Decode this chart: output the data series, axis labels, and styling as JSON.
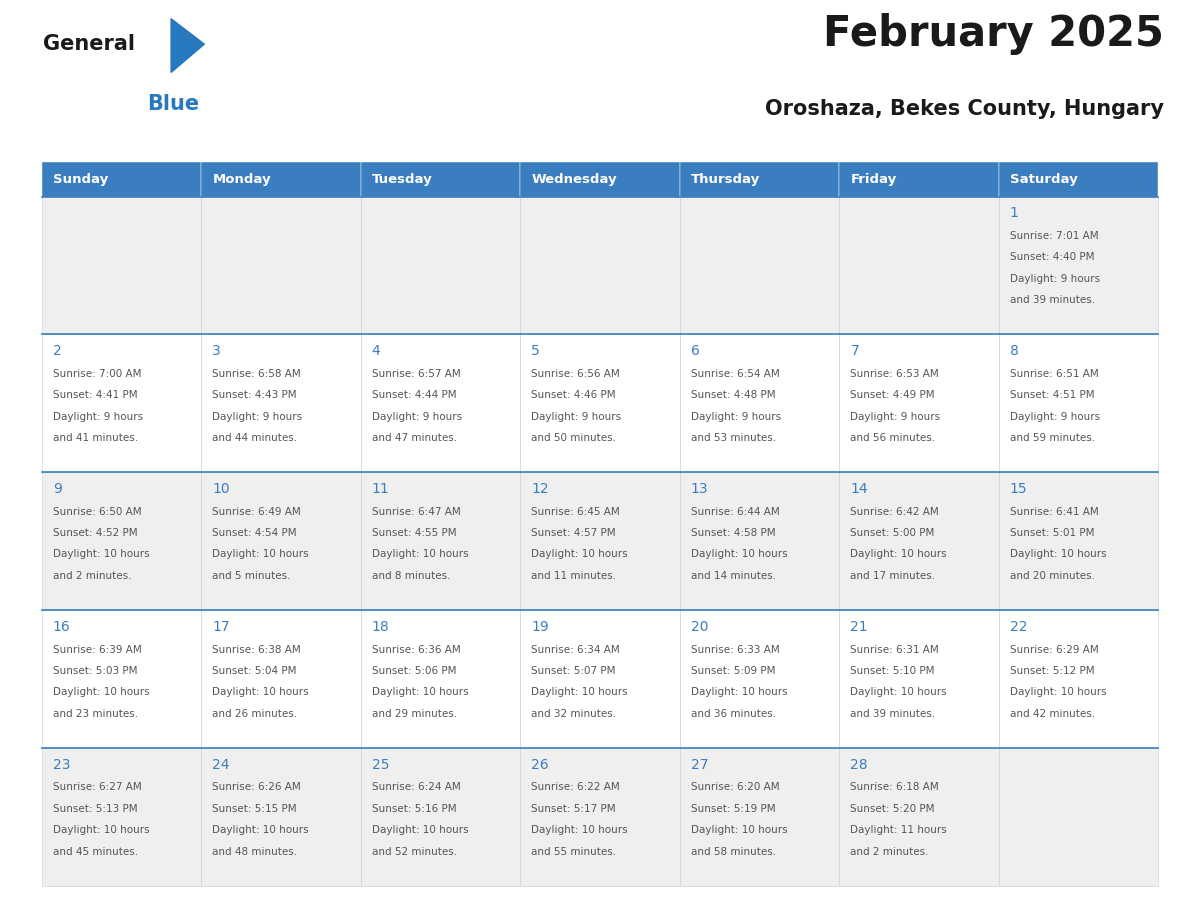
{
  "title": "February 2025",
  "subtitle": "Oroshaza, Bekes County, Hungary",
  "days_of_week": [
    "Sunday",
    "Monday",
    "Tuesday",
    "Wednesday",
    "Thursday",
    "Friday",
    "Saturday"
  ],
  "header_bg": "#3A7EBF",
  "header_text": "#FFFFFF",
  "row0_bg": "#EFEFEF",
  "row1_bg": "#FFFFFF",
  "row2_bg": "#EFEFEF",
  "row3_bg": "#FFFFFF",
  "row4_bg": "#EFEFEF",
  "cell_border_color": "#CCCCCC",
  "row_top_line_color": "#3A7EBF",
  "day_number_color": "#3A7EBF",
  "info_text_color": "#555555",
  "title_color": "#1A1A1A",
  "subtitle_color": "#1A1A1A",
  "logo_general_color": "#1A1A1A",
  "logo_blue_color": "#2878BE",
  "calendar_data": [
    {
      "day": 1,
      "col": 6,
      "row": 0,
      "sunrise": "7:01 AM",
      "sunset": "4:40 PM",
      "daylight_line1": "9 hours",
      "daylight_line2": "and 39 minutes."
    },
    {
      "day": 2,
      "col": 0,
      "row": 1,
      "sunrise": "7:00 AM",
      "sunset": "4:41 PM",
      "daylight_line1": "9 hours",
      "daylight_line2": "and 41 minutes."
    },
    {
      "day": 3,
      "col": 1,
      "row": 1,
      "sunrise": "6:58 AM",
      "sunset": "4:43 PM",
      "daylight_line1": "9 hours",
      "daylight_line2": "and 44 minutes."
    },
    {
      "day": 4,
      "col": 2,
      "row": 1,
      "sunrise": "6:57 AM",
      "sunset": "4:44 PM",
      "daylight_line1": "9 hours",
      "daylight_line2": "and 47 minutes."
    },
    {
      "day": 5,
      "col": 3,
      "row": 1,
      "sunrise": "6:56 AM",
      "sunset": "4:46 PM",
      "daylight_line1": "9 hours",
      "daylight_line2": "and 50 minutes."
    },
    {
      "day": 6,
      "col": 4,
      "row": 1,
      "sunrise": "6:54 AM",
      "sunset": "4:48 PM",
      "daylight_line1": "9 hours",
      "daylight_line2": "and 53 minutes."
    },
    {
      "day": 7,
      "col": 5,
      "row": 1,
      "sunrise": "6:53 AM",
      "sunset": "4:49 PM",
      "daylight_line1": "9 hours",
      "daylight_line2": "and 56 minutes."
    },
    {
      "day": 8,
      "col": 6,
      "row": 1,
      "sunrise": "6:51 AM",
      "sunset": "4:51 PM",
      "daylight_line1": "9 hours",
      "daylight_line2": "and 59 minutes."
    },
    {
      "day": 9,
      "col": 0,
      "row": 2,
      "sunrise": "6:50 AM",
      "sunset": "4:52 PM",
      "daylight_line1": "10 hours",
      "daylight_line2": "and 2 minutes."
    },
    {
      "day": 10,
      "col": 1,
      "row": 2,
      "sunrise": "6:49 AM",
      "sunset": "4:54 PM",
      "daylight_line1": "10 hours",
      "daylight_line2": "and 5 minutes."
    },
    {
      "day": 11,
      "col": 2,
      "row": 2,
      "sunrise": "6:47 AM",
      "sunset": "4:55 PM",
      "daylight_line1": "10 hours",
      "daylight_line2": "and 8 minutes."
    },
    {
      "day": 12,
      "col": 3,
      "row": 2,
      "sunrise": "6:45 AM",
      "sunset": "4:57 PM",
      "daylight_line1": "10 hours",
      "daylight_line2": "and 11 minutes."
    },
    {
      "day": 13,
      "col": 4,
      "row": 2,
      "sunrise": "6:44 AM",
      "sunset": "4:58 PM",
      "daylight_line1": "10 hours",
      "daylight_line2": "and 14 minutes."
    },
    {
      "day": 14,
      "col": 5,
      "row": 2,
      "sunrise": "6:42 AM",
      "sunset": "5:00 PM",
      "daylight_line1": "10 hours",
      "daylight_line2": "and 17 minutes."
    },
    {
      "day": 15,
      "col": 6,
      "row": 2,
      "sunrise": "6:41 AM",
      "sunset": "5:01 PM",
      "daylight_line1": "10 hours",
      "daylight_line2": "and 20 minutes."
    },
    {
      "day": 16,
      "col": 0,
      "row": 3,
      "sunrise": "6:39 AM",
      "sunset": "5:03 PM",
      "daylight_line1": "10 hours",
      "daylight_line2": "and 23 minutes."
    },
    {
      "day": 17,
      "col": 1,
      "row": 3,
      "sunrise": "6:38 AM",
      "sunset": "5:04 PM",
      "daylight_line1": "10 hours",
      "daylight_line2": "and 26 minutes."
    },
    {
      "day": 18,
      "col": 2,
      "row": 3,
      "sunrise": "6:36 AM",
      "sunset": "5:06 PM",
      "daylight_line1": "10 hours",
      "daylight_line2": "and 29 minutes."
    },
    {
      "day": 19,
      "col": 3,
      "row": 3,
      "sunrise": "6:34 AM",
      "sunset": "5:07 PM",
      "daylight_line1": "10 hours",
      "daylight_line2": "and 32 minutes."
    },
    {
      "day": 20,
      "col": 4,
      "row": 3,
      "sunrise": "6:33 AM",
      "sunset": "5:09 PM",
      "daylight_line1": "10 hours",
      "daylight_line2": "and 36 minutes."
    },
    {
      "day": 21,
      "col": 5,
      "row": 3,
      "sunrise": "6:31 AM",
      "sunset": "5:10 PM",
      "daylight_line1": "10 hours",
      "daylight_line2": "and 39 minutes."
    },
    {
      "day": 22,
      "col": 6,
      "row": 3,
      "sunrise": "6:29 AM",
      "sunset": "5:12 PM",
      "daylight_line1": "10 hours",
      "daylight_line2": "and 42 minutes."
    },
    {
      "day": 23,
      "col": 0,
      "row": 4,
      "sunrise": "6:27 AM",
      "sunset": "5:13 PM",
      "daylight_line1": "10 hours",
      "daylight_line2": "and 45 minutes."
    },
    {
      "day": 24,
      "col": 1,
      "row": 4,
      "sunrise": "6:26 AM",
      "sunset": "5:15 PM",
      "daylight_line1": "10 hours",
      "daylight_line2": "and 48 minutes."
    },
    {
      "day": 25,
      "col": 2,
      "row": 4,
      "sunrise": "6:24 AM",
      "sunset": "5:16 PM",
      "daylight_line1": "10 hours",
      "daylight_line2": "and 52 minutes."
    },
    {
      "day": 26,
      "col": 3,
      "row": 4,
      "sunrise": "6:22 AM",
      "sunset": "5:17 PM",
      "daylight_line1": "10 hours",
      "daylight_line2": "and 55 minutes."
    },
    {
      "day": 27,
      "col": 4,
      "row": 4,
      "sunrise": "6:20 AM",
      "sunset": "5:19 PM",
      "daylight_line1": "10 hours",
      "daylight_line2": "and 58 minutes."
    },
    {
      "day": 28,
      "col": 5,
      "row": 4,
      "sunrise": "6:18 AM",
      "sunset": "5:20 PM",
      "daylight_line1": "11 hours",
      "daylight_line2": "and 2 minutes."
    }
  ],
  "num_rows": 5,
  "num_cols": 7,
  "fig_width": 11.88,
  "fig_height": 9.18,
  "dpi": 100
}
